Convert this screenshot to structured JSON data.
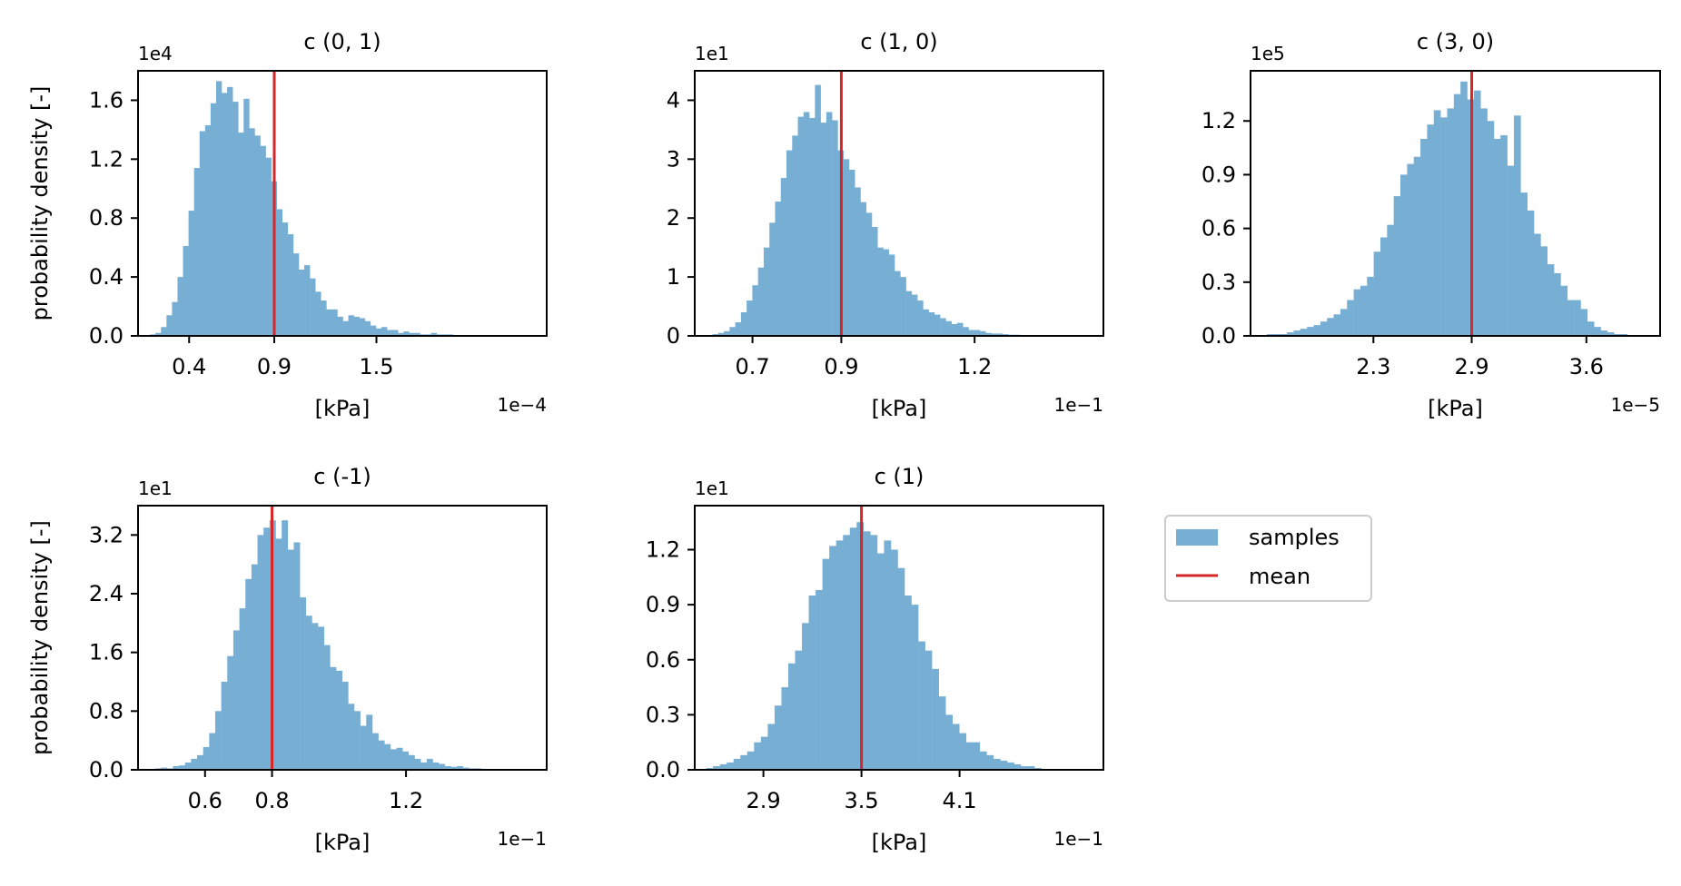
{
  "colors": {
    "bar": "#77aed4",
    "mean": "#d62728",
    "axis": "#000000",
    "background": "#ffffff"
  },
  "legend": {
    "entries": [
      "samples",
      "mean"
    ],
    "placement": "right of bottom row"
  },
  "chart_data": [
    {
      "type": "bar",
      "title": "c (0, 1)",
      "xlabel": "[kPa]",
      "ylabel": "probability density [-]",
      "x_exponent": "1e−4",
      "y_exponent": "1e4",
      "xlim": [
        0.1,
        2.5
      ],
      "ylim": [
        0,
        1.8
      ],
      "xticks": [
        0.4,
        0.9,
        1.5
      ],
      "xtick_labels": [
        "0.4",
        "0.9",
        "1.5"
      ],
      "yticks": [
        0,
        0.4,
        0.8,
        1.2,
        1.6
      ],
      "ytick_labels": [
        "0.0",
        "0.4",
        "0.8",
        "1.2",
        "1.6"
      ],
      "mean": 0.9,
      "bin_range": [
        0.17,
        1.95
      ],
      "values": [
        0.01,
        0.02,
        0.06,
        0.14,
        0.23,
        0.4,
        0.61,
        0.85,
        1.14,
        1.39,
        1.43,
        1.58,
        1.73,
        1.65,
        1.69,
        1.59,
        1.38,
        1.61,
        1.41,
        1.36,
        1.29,
        1.21,
        1.05,
        0.86,
        0.77,
        0.69,
        0.56,
        0.45,
        0.48,
        0.39,
        0.3,
        0.24,
        0.18,
        0.18,
        0.13,
        0.1,
        0.14,
        0.13,
        0.12,
        0.1,
        0.07,
        0.05,
        0.06,
        0.04,
        0.04,
        0.02,
        0.03,
        0.02,
        0.02,
        0.01,
        0.01,
        0.02,
        0.01,
        0.01,
        0.01
      ]
    },
    {
      "type": "bar",
      "title": "c (1, 0)",
      "xlabel": "[kPa]",
      "ylabel": "",
      "x_exponent": "1e−1",
      "y_exponent": "1e1",
      "xlim": [
        0.57,
        1.49
      ],
      "ylim": [
        0,
        4.5
      ],
      "xticks": [
        0.7,
        0.9,
        1.2
      ],
      "xtick_labels": [
        "0.7",
        "0.9",
        "1.2"
      ],
      "yticks": [
        0,
        1,
        2,
        3,
        4
      ],
      "ytick_labels": [
        "0",
        "1",
        "2",
        "3",
        "4"
      ],
      "mean": 0.9,
      "bin_range": [
        0.61,
        1.34
      ],
      "values": [
        0.03,
        0.05,
        0.08,
        0.15,
        0.23,
        0.4,
        0.6,
        0.86,
        1.16,
        1.5,
        1.92,
        2.28,
        2.68,
        3.15,
        3.4,
        3.72,
        3.8,
        3.7,
        4.26,
        3.62,
        3.8,
        3.66,
        3.15,
        3.0,
        2.82,
        2.52,
        2.27,
        2.09,
        1.85,
        1.5,
        1.47,
        1.38,
        1.1,
        1.0,
        0.76,
        0.7,
        0.6,
        0.45,
        0.4,
        0.36,
        0.3,
        0.25,
        0.2,
        0.22,
        0.15,
        0.1,
        0.1,
        0.08,
        0.05,
        0.04,
        0.04,
        0.03,
        0.02,
        0.02,
        0.01,
        0.01,
        0.01
      ]
    },
    {
      "type": "bar",
      "title": "c (3, 0)",
      "xlabel": "[kPa]",
      "ylabel": "",
      "x_exponent": "1e−5",
      "y_exponent": "1e5",
      "xlim": [
        1.55,
        4.05
      ],
      "ylim": [
        0,
        1.48
      ],
      "xticks": [
        2.3,
        2.9,
        3.6
      ],
      "xtick_labels": [
        "2.3",
        "2.9",
        "3.6"
      ],
      "yticks": [
        0,
        0.3,
        0.6,
        0.9,
        1.2
      ],
      "ytick_labels": [
        "0.0",
        "0.3",
        "0.6",
        "0.9",
        "1.2"
      ],
      "mean": 2.9,
      "bin_range": [
        1.65,
        3.85
      ],
      "values": [
        0.01,
        0.01,
        0.01,
        0.02,
        0.03,
        0.04,
        0.05,
        0.06,
        0.08,
        0.1,
        0.12,
        0.15,
        0.2,
        0.26,
        0.28,
        0.33,
        0.47,
        0.55,
        0.62,
        0.78,
        0.9,
        0.96,
        1.0,
        1.1,
        1.18,
        1.26,
        1.22,
        1.27,
        1.35,
        1.42,
        1.32,
        1.37,
        1.27,
        1.2,
        1.1,
        1.12,
        0.95,
        1.23,
        0.8,
        0.7,
        0.57,
        0.5,
        0.4,
        0.35,
        0.28,
        0.2,
        0.2,
        0.15,
        0.08,
        0.05,
        0.03,
        0.02,
        0.01,
        0.01
      ]
    },
    {
      "type": "bar",
      "title": "c (-1)",
      "xlabel": "[kPa]",
      "ylabel": "probability density [-]",
      "x_exponent": "1e−1",
      "y_exponent": "1e1",
      "xlim": [
        0.4,
        1.62
      ],
      "ylim": [
        0,
        3.6
      ],
      "xticks": [
        0.6,
        0.8,
        1.2
      ],
      "xtick_labels": [
        "0.6",
        "0.8",
        "1.2"
      ],
      "yticks": [
        0,
        0.8,
        1.6,
        2.4,
        3.2
      ],
      "ytick_labels": [
        "0.0",
        "0.8",
        "1.6",
        "2.4",
        "3.2"
      ],
      "mean": 0.8,
      "bin_range": [
        0.45,
        1.46
      ],
      "values": [
        0.02,
        0.03,
        0.02,
        0.05,
        0.06,
        0.1,
        0.15,
        0.2,
        0.31,
        0.5,
        0.8,
        1.2,
        1.55,
        1.9,
        2.2,
        2.6,
        2.8,
        3.2,
        3.3,
        3.4,
        3.15,
        3.4,
        3.0,
        3.1,
        2.35,
        2.1,
        2.0,
        1.95,
        1.7,
        1.4,
        1.35,
        1.2,
        0.9,
        0.8,
        0.6,
        0.75,
        0.5,
        0.4,
        0.35,
        0.28,
        0.3,
        0.25,
        0.2,
        0.15,
        0.1,
        0.15,
        0.1,
        0.08,
        0.05,
        0.04,
        0.05,
        0.03,
        0.02,
        0.02,
        0.01,
        0.01
      ]
    },
    {
      "type": "bar",
      "title": "c (1)",
      "xlabel": "[kPa]",
      "ylabel": "",
      "x_exponent": "1e−1",
      "y_exponent": "1e1",
      "xlim": [
        2.48,
        4.98
      ],
      "ylim": [
        0,
        1.44
      ],
      "xticks": [
        2.9,
        3.5,
        4.1
      ],
      "xtick_labels": [
        "2.9",
        "3.5",
        "4.1"
      ],
      "yticks": [
        0,
        0.3,
        0.6,
        0.9,
        1.2
      ],
      "ytick_labels": [
        "0.0",
        "0.3",
        "0.6",
        "0.9",
        "1.2"
      ],
      "mean": 3.5,
      "bin_range": [
        2.55,
        4.6
      ],
      "values": [
        0.01,
        0.02,
        0.03,
        0.04,
        0.06,
        0.08,
        0.1,
        0.15,
        0.18,
        0.25,
        0.35,
        0.45,
        0.58,
        0.65,
        0.8,
        0.95,
        0.98,
        1.15,
        1.22,
        1.25,
        1.28,
        1.32,
        1.35,
        1.3,
        1.28,
        1.18,
        1.25,
        1.2,
        1.1,
        0.95,
        0.9,
        0.7,
        0.65,
        0.55,
        0.4,
        0.3,
        0.25,
        0.2,
        0.15,
        0.15,
        0.1,
        0.08,
        0.06,
        0.05,
        0.04,
        0.03,
        0.02,
        0.02,
        0.01
      ]
    }
  ]
}
